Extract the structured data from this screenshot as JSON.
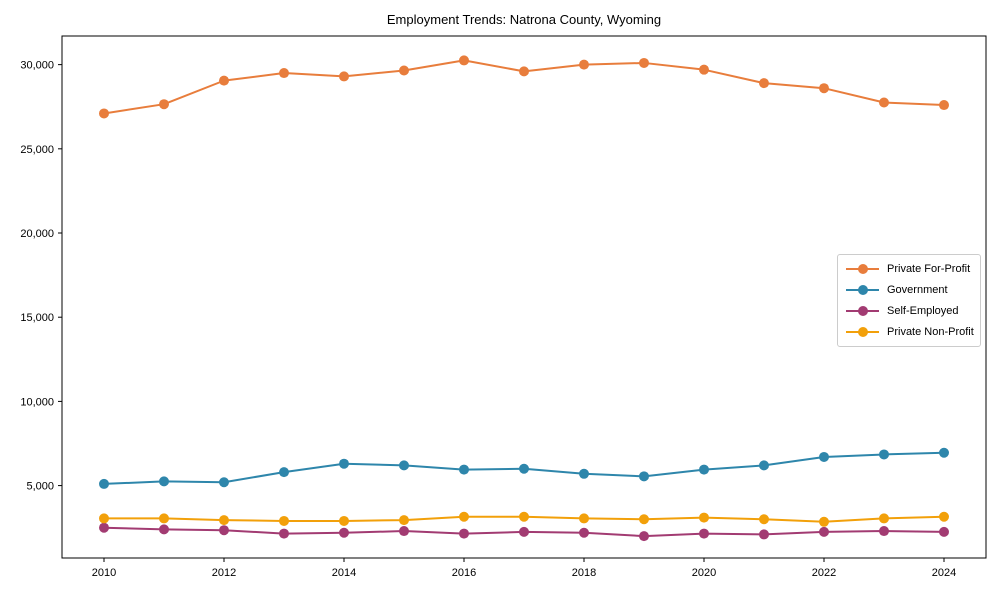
{
  "chart_data": {
    "type": "line",
    "title": "Employment Trends: Natrona County, Wyoming",
    "xlabel": "",
    "ylabel": "",
    "grid": false,
    "legend_position": "center right",
    "x": [
      2010,
      2011,
      2012,
      2013,
      2014,
      2015,
      2016,
      2017,
      2018,
      2019,
      2020,
      2021,
      2022,
      2023,
      2024
    ],
    "xlim": [
      2009.3,
      2024.7
    ],
    "ylim": [
      700,
      31700
    ],
    "xticks": [
      2010,
      2012,
      2014,
      2016,
      2018,
      2020,
      2022,
      2024
    ],
    "yticks": [
      5000,
      10000,
      15000,
      20000,
      25000,
      30000
    ],
    "axis_color": "#000000",
    "series": [
      {
        "name": "Private For-Profit",
        "color": "#E87D3C",
        "values": [
          27100,
          27650,
          29050,
          29500,
          29300,
          29650,
          30250,
          29600,
          30000,
          30100,
          29700,
          28900,
          28600,
          27750,
          27600
        ]
      },
      {
        "name": "Government",
        "color": "#2E86AB",
        "values": [
          5100,
          5250,
          5200,
          5800,
          6300,
          6200,
          5950,
          6000,
          5700,
          5550,
          5950,
          6200,
          6700,
          6850,
          6950
        ]
      },
      {
        "name": "Self-Employed",
        "color": "#A23B72",
        "values": [
          2500,
          2400,
          2350,
          2150,
          2200,
          2300,
          2150,
          2250,
          2200,
          2000,
          2150,
          2100,
          2250,
          2300,
          2250
        ]
      },
      {
        "name": "Private Non-Profit",
        "color": "#F2A00A",
        "values": [
          3050,
          3050,
          2950,
          2900,
          2900,
          2950,
          3150,
          3150,
          3050,
          3000,
          3100,
          3000,
          2850,
          3050,
          3150
        ]
      }
    ]
  }
}
